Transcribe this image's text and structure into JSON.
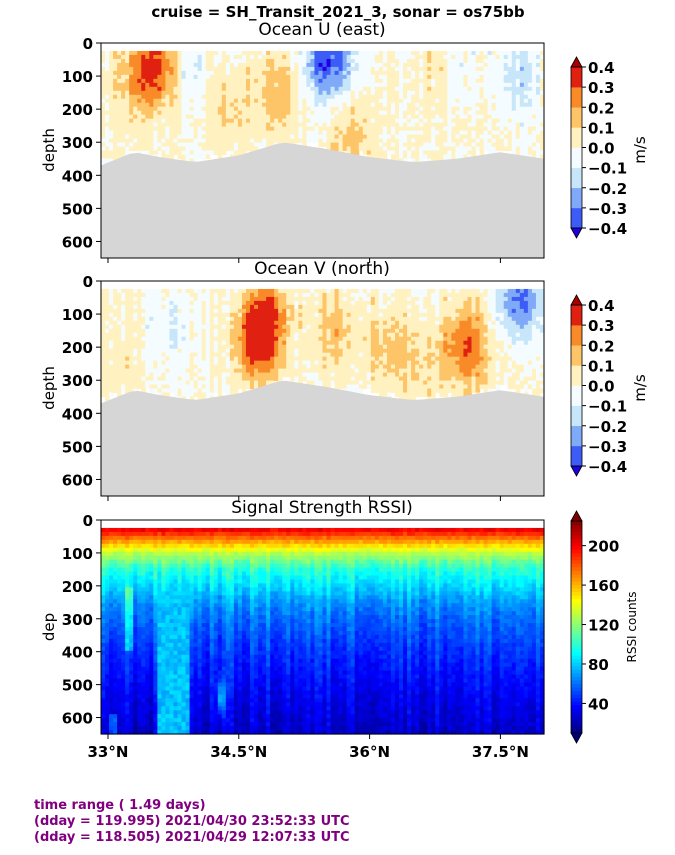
{
  "suptitle": "cruise = SH_Transit_2021_3,  sonar = os75bb",
  "colors": {
    "land_mask": "#d6d6d6",
    "footer_text": "#800080"
  },
  "x_axis": {
    "tick_values": [
      33.0,
      34.5,
      36.0,
      37.5
    ],
    "tick_labels": [
      "33°N",
      "34.5°N",
      "36°N",
      "37.5°N"
    ],
    "range": [
      32.92,
      38.0
    ]
  },
  "chart_data": [
    {
      "type": "heatmap",
      "title": "Ocean U (east)",
      "ylabel": "depth",
      "ylim": [
        650,
        0
      ],
      "y_ticks": [
        0,
        100,
        200,
        300,
        400,
        500,
        600
      ],
      "colorbar": {
        "label": "m/s",
        "range": [
          -0.4,
          0.4
        ],
        "ticks": [
          "0.4",
          "0.3",
          "0.2",
          "0.1",
          "0.0",
          "−0.1",
          "−0.2",
          "−0.3",
          "−0.4"
        ],
        "tick_values": [
          0.4,
          0.3,
          0.2,
          0.1,
          0.0,
          -0.1,
          -0.2,
          -0.3,
          -0.4
        ],
        "colors": [
          "#2000e0",
          "#3c5cf8",
          "#80aaf8",
          "#c8e6fa",
          "#f4fcff",
          "#fff2c0",
          "#fdc468",
          "#f98a28",
          "#e02010",
          "#a80000"
        ]
      },
      "bottom_depth_profile": {
        "x": [
          32.92,
          33.3,
          33.6,
          34.0,
          34.5,
          35.0,
          35.5,
          36.0,
          36.5,
          37.0,
          37.5,
          38.0
        ],
        "depth": [
          370,
          330,
          345,
          360,
          340,
          300,
          320,
          345,
          360,
          350,
          330,
          350
        ]
      },
      "features": [
        {
          "x": 33.55,
          "depth": 70,
          "value": 0.35
        },
        {
          "x": 35.52,
          "depth": 50,
          "value": -0.4
        },
        {
          "x": 34.95,
          "depth": 150,
          "value": 0.15
        },
        {
          "x": 34.4,
          "depth": 200,
          "value": 0.1
        },
        {
          "x": 33.3,
          "depth": 120,
          "value": 0.1
        },
        {
          "x": 37.0,
          "depth": 80,
          "value": -0.1
        },
        {
          "x": 37.7,
          "depth": 100,
          "value": -0.15
        },
        {
          "x": 36.8,
          "depth": 70,
          "value": 0.1
        },
        {
          "x": 35.8,
          "depth": 280,
          "value": 0.15
        },
        {
          "x": 33.9,
          "depth": 80,
          "value": -0.1
        }
      ]
    },
    {
      "type": "heatmap",
      "title": "Ocean V (north)",
      "ylabel": "depth",
      "ylim": [
        650,
        0
      ],
      "y_ticks": [
        0,
        100,
        200,
        300,
        400,
        500,
        600
      ],
      "colorbar": {
        "label": "m/s",
        "range": [
          -0.4,
          0.4
        ],
        "ticks": [
          "0.4",
          "0.3",
          "0.2",
          "0.1",
          "0.0",
          "−0.1",
          "−0.2",
          "−0.3",
          "−0.4"
        ],
        "tick_values": [
          0.4,
          0.3,
          0.2,
          0.1,
          0.0,
          -0.1,
          -0.2,
          -0.3,
          -0.4
        ],
        "colors": [
          "#2000e0",
          "#3c5cf8",
          "#80aaf8",
          "#c8e6fa",
          "#f4fcff",
          "#fff2c0",
          "#fdc468",
          "#f98a28",
          "#e02010",
          "#a80000"
        ]
      },
      "bottom_depth_profile": {
        "x": [
          32.92,
          33.3,
          33.6,
          34.0,
          34.5,
          35.0,
          35.5,
          36.0,
          36.5,
          37.0,
          37.5,
          38.0
        ],
        "depth": [
          370,
          330,
          345,
          360,
          340,
          300,
          320,
          345,
          360,
          350,
          330,
          350
        ]
      },
      "features": [
        {
          "x": 34.8,
          "depth": 120,
          "value": 0.35
        },
        {
          "x": 34.7,
          "depth": 200,
          "value": 0.25
        },
        {
          "x": 37.1,
          "depth": 200,
          "value": 0.3
        },
        {
          "x": 37.7,
          "depth": 50,
          "value": -0.35
        },
        {
          "x": 35.6,
          "depth": 150,
          "value": 0.15
        },
        {
          "x": 36.2,
          "depth": 200,
          "value": 0.15
        },
        {
          "x": 33.7,
          "depth": 150,
          "value": -0.1
        },
        {
          "x": 33.2,
          "depth": 250,
          "value": 0.05
        },
        {
          "x": 36.6,
          "depth": 250,
          "value": 0.1
        }
      ]
    },
    {
      "type": "heatmap",
      "title": "Signal Strength RSSI)",
      "ylabel": "dep",
      "ylim": [
        650,
        0
      ],
      "y_ticks": [
        0,
        100,
        200,
        300,
        400,
        500,
        600
      ],
      "colorbar": {
        "label": "RSSI counts",
        "range": [
          10,
          225
        ],
        "ticks": [
          "200",
          "160",
          "120",
          "80",
          "40"
        ],
        "tick_values": [
          200,
          160,
          120,
          80,
          40
        ],
        "colors": [
          "#00007f",
          "#0000ff",
          "#0080ff",
          "#00ffff",
          "#80ff80",
          "#ffff00",
          "#ff8000",
          "#ff0000",
          "#7f0000"
        ]
      },
      "profile": {
        "depth": [
          30,
          60,
          100,
          150,
          200,
          250,
          300,
          400,
          500,
          600,
          650
        ],
        "rssi": [
          200,
          170,
          130,
          100,
          85,
          70,
          60,
          48,
          38,
          30,
          26
        ]
      },
      "features": [
        {
          "x": 33.55,
          "x2": 33.95,
          "note_value": 80
        },
        {
          "x": 34.3,
          "depth": 540,
          "value": 95
        }
      ]
    }
  ],
  "footer": {
    "line1": "time range ( 1.49 days)",
    "line2": "(dday = 119.995) 2021/04/30 23:52:33 UTC",
    "line3": "(dday = 118.505) 2021/04/29 12:07:33 UTC"
  }
}
